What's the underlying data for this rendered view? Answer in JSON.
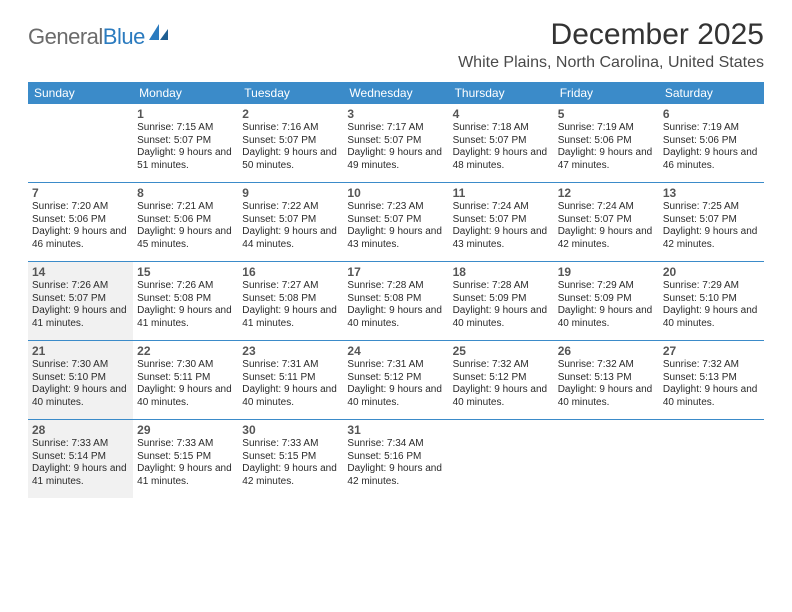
{
  "logo": {
    "text_gray": "General",
    "text_blue": "Blue"
  },
  "title": "December 2025",
  "location": "White Plains, North Carolina, United States",
  "colors": {
    "header_bg": "#3b8bc9",
    "header_text": "#ffffff",
    "shade_bg": "#f1f1f1",
    "border": "#3b8bc9",
    "logo_gray": "#6b6b6b",
    "logo_blue": "#2b7bbf",
    "body_text": "#2a2a2a",
    "daynum_text": "#555555"
  },
  "day_headers": [
    "Sunday",
    "Monday",
    "Tuesday",
    "Wednesday",
    "Thursday",
    "Friday",
    "Saturday"
  ],
  "weeks": [
    [
      {
        "num": "",
        "info": "",
        "shade": false
      },
      {
        "num": "1",
        "info": "Sunrise: 7:15 AM\nSunset: 5:07 PM\nDaylight: 9 hours and 51 minutes.",
        "shade": false
      },
      {
        "num": "2",
        "info": "Sunrise: 7:16 AM\nSunset: 5:07 PM\nDaylight: 9 hours and 50 minutes.",
        "shade": false
      },
      {
        "num": "3",
        "info": "Sunrise: 7:17 AM\nSunset: 5:07 PM\nDaylight: 9 hours and 49 minutes.",
        "shade": false
      },
      {
        "num": "4",
        "info": "Sunrise: 7:18 AM\nSunset: 5:07 PM\nDaylight: 9 hours and 48 minutes.",
        "shade": false
      },
      {
        "num": "5",
        "info": "Sunrise: 7:19 AM\nSunset: 5:06 PM\nDaylight: 9 hours and 47 minutes.",
        "shade": false
      },
      {
        "num": "6",
        "info": "Sunrise: 7:19 AM\nSunset: 5:06 PM\nDaylight: 9 hours and 46 minutes.",
        "shade": false
      }
    ],
    [
      {
        "num": "7",
        "info": "Sunrise: 7:20 AM\nSunset: 5:06 PM\nDaylight: 9 hours and 46 minutes.",
        "shade": false
      },
      {
        "num": "8",
        "info": "Sunrise: 7:21 AM\nSunset: 5:06 PM\nDaylight: 9 hours and 45 minutes.",
        "shade": false
      },
      {
        "num": "9",
        "info": "Sunrise: 7:22 AM\nSunset: 5:07 PM\nDaylight: 9 hours and 44 minutes.",
        "shade": false
      },
      {
        "num": "10",
        "info": "Sunrise: 7:23 AM\nSunset: 5:07 PM\nDaylight: 9 hours and 43 minutes.",
        "shade": false
      },
      {
        "num": "11",
        "info": "Sunrise: 7:24 AM\nSunset: 5:07 PM\nDaylight: 9 hours and 43 minutes.",
        "shade": false
      },
      {
        "num": "12",
        "info": "Sunrise: 7:24 AM\nSunset: 5:07 PM\nDaylight: 9 hours and 42 minutes.",
        "shade": false
      },
      {
        "num": "13",
        "info": "Sunrise: 7:25 AM\nSunset: 5:07 PM\nDaylight: 9 hours and 42 minutes.",
        "shade": false
      }
    ],
    [
      {
        "num": "14",
        "info": "Sunrise: 7:26 AM\nSunset: 5:07 PM\nDaylight: 9 hours and 41 minutes.",
        "shade": true
      },
      {
        "num": "15",
        "info": "Sunrise: 7:26 AM\nSunset: 5:08 PM\nDaylight: 9 hours and 41 minutes.",
        "shade": false
      },
      {
        "num": "16",
        "info": "Sunrise: 7:27 AM\nSunset: 5:08 PM\nDaylight: 9 hours and 41 minutes.",
        "shade": false
      },
      {
        "num": "17",
        "info": "Sunrise: 7:28 AM\nSunset: 5:08 PM\nDaylight: 9 hours and 40 minutes.",
        "shade": false
      },
      {
        "num": "18",
        "info": "Sunrise: 7:28 AM\nSunset: 5:09 PM\nDaylight: 9 hours and 40 minutes.",
        "shade": false
      },
      {
        "num": "19",
        "info": "Sunrise: 7:29 AM\nSunset: 5:09 PM\nDaylight: 9 hours and 40 minutes.",
        "shade": false
      },
      {
        "num": "20",
        "info": "Sunrise: 7:29 AM\nSunset: 5:10 PM\nDaylight: 9 hours and 40 minutes.",
        "shade": false
      }
    ],
    [
      {
        "num": "21",
        "info": "Sunrise: 7:30 AM\nSunset: 5:10 PM\nDaylight: 9 hours and 40 minutes.",
        "shade": true
      },
      {
        "num": "22",
        "info": "Sunrise: 7:30 AM\nSunset: 5:11 PM\nDaylight: 9 hours and 40 minutes.",
        "shade": false
      },
      {
        "num": "23",
        "info": "Sunrise: 7:31 AM\nSunset: 5:11 PM\nDaylight: 9 hours and 40 minutes.",
        "shade": false
      },
      {
        "num": "24",
        "info": "Sunrise: 7:31 AM\nSunset: 5:12 PM\nDaylight: 9 hours and 40 minutes.",
        "shade": false
      },
      {
        "num": "25",
        "info": "Sunrise: 7:32 AM\nSunset: 5:12 PM\nDaylight: 9 hours and 40 minutes.",
        "shade": false
      },
      {
        "num": "26",
        "info": "Sunrise: 7:32 AM\nSunset: 5:13 PM\nDaylight: 9 hours and 40 minutes.",
        "shade": false
      },
      {
        "num": "27",
        "info": "Sunrise: 7:32 AM\nSunset: 5:13 PM\nDaylight: 9 hours and 40 minutes.",
        "shade": false
      }
    ],
    [
      {
        "num": "28",
        "info": "Sunrise: 7:33 AM\nSunset: 5:14 PM\nDaylight: 9 hours and 41 minutes.",
        "shade": true
      },
      {
        "num": "29",
        "info": "Sunrise: 7:33 AM\nSunset: 5:15 PM\nDaylight: 9 hours and 41 minutes.",
        "shade": false
      },
      {
        "num": "30",
        "info": "Sunrise: 7:33 AM\nSunset: 5:15 PM\nDaylight: 9 hours and 42 minutes.",
        "shade": false
      },
      {
        "num": "31",
        "info": "Sunrise: 7:34 AM\nSunset: 5:16 PM\nDaylight: 9 hours and 42 minutes.",
        "shade": false
      },
      {
        "num": "",
        "info": "",
        "shade": false
      },
      {
        "num": "",
        "info": "",
        "shade": false
      },
      {
        "num": "",
        "info": "",
        "shade": false
      }
    ]
  ]
}
